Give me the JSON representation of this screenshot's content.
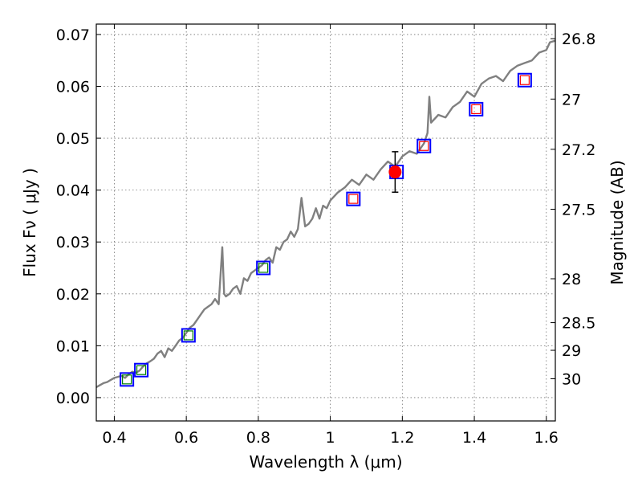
{
  "chart_data": {
    "type": "scatter",
    "xlabel": "Wavelength  λ (μm)",
    "ylabel": "Flux  Fν  ( μJy )",
    "ylabel_right": "Magnitude (AB)",
    "xlim": [
      0.35,
      1.625
    ],
    "ylim": [
      -0.0045,
      0.072
    ],
    "x_ticks": [
      0.4,
      0.6,
      0.8,
      1.0,
      1.2,
      1.4,
      1.6
    ],
    "x_tick_labels": [
      "0.4",
      "0.6",
      "0.8",
      "1",
      "1.2",
      "1.4",
      "1.6"
    ],
    "y_ticks": [
      0.0,
      0.01,
      0.02,
      0.03,
      0.04,
      0.05,
      0.06,
      0.07
    ],
    "y_tick_labels": [
      "0.00",
      "0.01",
      "0.02",
      "0.03",
      "0.04",
      "0.05",
      "0.06",
      "0.07"
    ],
    "right_ticks": [
      26.8,
      27.0,
      27.2,
      27.5,
      28.0,
      28.5,
      29.0,
      30.0
    ],
    "right_tick_labels": [
      "26.8",
      "27",
      "27.2",
      "27.5",
      "28",
      "28.5",
      "29",
      "30"
    ],
    "grid": true,
    "colors": {
      "model": "#808080",
      "observed": "#0000ff",
      "model_green": "#008000",
      "model_red": "#ff0000",
      "detection": "#ff0000"
    },
    "series": [
      {
        "name": "model spectrum",
        "kind": "line",
        "x": [
          0.35,
          0.36,
          0.37,
          0.38,
          0.39,
          0.4,
          0.41,
          0.42,
          0.43,
          0.44,
          0.45,
          0.46,
          0.47,
          0.48,
          0.49,
          0.5,
          0.51,
          0.52,
          0.53,
          0.54,
          0.55,
          0.56,
          0.57,
          0.58,
          0.59,
          0.6,
          0.61,
          0.62,
          0.63,
          0.64,
          0.65,
          0.66,
          0.67,
          0.68,
          0.69,
          0.7,
          0.705,
          0.71,
          0.72,
          0.73,
          0.74,
          0.75,
          0.76,
          0.77,
          0.78,
          0.79,
          0.8,
          0.81,
          0.82,
          0.83,
          0.84,
          0.85,
          0.86,
          0.87,
          0.88,
          0.89,
          0.9,
          0.91,
          0.92,
          0.93,
          0.94,
          0.95,
          0.96,
          0.97,
          0.98,
          0.99,
          1.0,
          1.02,
          1.04,
          1.06,
          1.08,
          1.1,
          1.12,
          1.14,
          1.16,
          1.18,
          1.2,
          1.22,
          1.24,
          1.26,
          1.27,
          1.275,
          1.28,
          1.3,
          1.32,
          1.34,
          1.36,
          1.38,
          1.4,
          1.42,
          1.44,
          1.46,
          1.48,
          1.5,
          1.52,
          1.54,
          1.56,
          1.58,
          1.6,
          1.61,
          1.625
        ],
        "y": [
          0.002,
          0.0024,
          0.0028,
          0.003,
          0.0034,
          0.0038,
          0.004,
          0.0042,
          0.0038,
          0.0045,
          0.005,
          0.0048,
          0.0052,
          0.006,
          0.0066,
          0.007,
          0.0075,
          0.0085,
          0.009,
          0.0078,
          0.0095,
          0.009,
          0.01,
          0.011,
          0.0115,
          0.0125,
          0.0135,
          0.014,
          0.015,
          0.016,
          0.017,
          0.0175,
          0.018,
          0.019,
          0.018,
          0.029,
          0.02,
          0.0195,
          0.02,
          0.021,
          0.0215,
          0.02,
          0.023,
          0.0225,
          0.024,
          0.0245,
          0.025,
          0.0255,
          0.0265,
          0.027,
          0.026,
          0.029,
          0.0285,
          0.03,
          0.0305,
          0.032,
          0.031,
          0.0325,
          0.0385,
          0.033,
          0.0335,
          0.0345,
          0.0365,
          0.0345,
          0.037,
          0.0365,
          0.038,
          0.0395,
          0.0405,
          0.042,
          0.041,
          0.043,
          0.042,
          0.044,
          0.0455,
          0.0445,
          0.0465,
          0.0475,
          0.047,
          0.049,
          0.051,
          0.058,
          0.053,
          0.0545,
          0.054,
          0.056,
          0.057,
          0.059,
          0.058,
          0.0605,
          0.0615,
          0.062,
          0.061,
          0.063,
          0.064,
          0.0645,
          0.065,
          0.0665,
          0.067,
          0.0685,
          0.0688
        ]
      },
      {
        "name": "observed bands",
        "kind": "square",
        "color": "observed",
        "x": [
          0.435,
          0.475,
          0.606,
          0.814,
          1.064,
          1.184,
          1.26,
          1.405,
          1.54
        ],
        "y": [
          0.0035,
          0.0053,
          0.012,
          0.025,
          0.0383,
          0.0435,
          0.0485,
          0.0556,
          0.0612
        ]
      },
      {
        "name": "model bands (optical)",
        "kind": "square-small",
        "color": "model_green",
        "x": [
          0.435,
          0.475,
          0.606,
          0.814
        ],
        "y": [
          0.0035,
          0.0053,
          0.012,
          0.025
        ]
      },
      {
        "name": "model bands (near-IR)",
        "kind": "square-small",
        "color": "model_red",
        "x": [
          1.064,
          1.26,
          1.405,
          1.54
        ],
        "y": [
          0.0383,
          0.0485,
          0.0556,
          0.0612
        ]
      },
      {
        "name": "detection",
        "kind": "circle",
        "color": "detection",
        "x": [
          1.18
        ],
        "y": [
          0.0435
        ],
        "yerr": [
          0.0039
        ]
      }
    ]
  }
}
